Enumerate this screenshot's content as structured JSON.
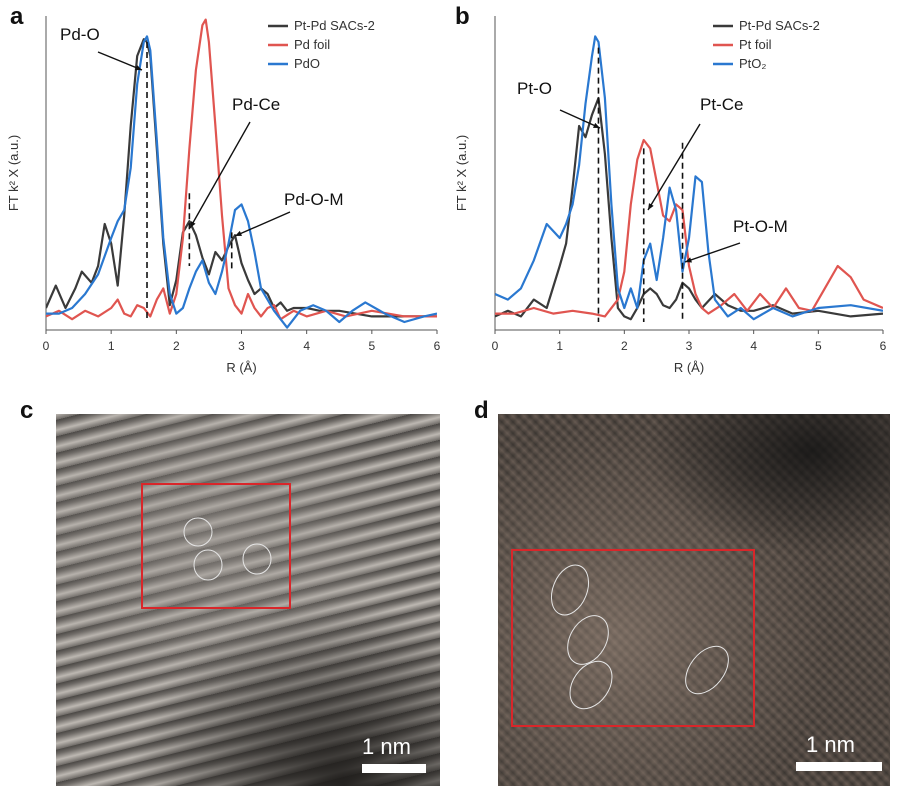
{
  "chart_data": [
    {
      "panel": "a",
      "type": "line",
      "xlabel": "R (Å)",
      "ylabel": "FT k² X (a.u.)",
      "xlim": [
        0,
        6
      ],
      "xticks": [
        "0",
        "1",
        "2",
        "3",
        "4",
        "5",
        "6"
      ],
      "ylim": [
        0,
        1
      ],
      "legend_position": "top-right",
      "series": [
        {
          "name": "Pt-Pd SACs-2",
          "color": "#3a3a3a",
          "x": [
            0,
            0.15,
            0.3,
            0.45,
            0.55,
            0.7,
            0.8,
            0.9,
            1.0,
            1.1,
            1.2,
            1.3,
            1.4,
            1.5,
            1.55,
            1.6,
            1.7,
            1.8,
            1.9,
            2.0,
            2.1,
            2.2,
            2.3,
            2.4,
            2.5,
            2.6,
            2.7,
            2.8,
            2.9,
            3.0,
            3.1,
            3.2,
            3.3,
            3.4,
            3.5,
            3.6,
            3.7,
            3.8,
            4.0,
            4.2,
            4.5,
            5.0,
            5.5,
            6.0
          ],
          "y": [
            0.05,
            0.13,
            0.05,
            0.12,
            0.18,
            0.14,
            0.2,
            0.35,
            0.28,
            0.13,
            0.38,
            0.7,
            0.95,
            1.01,
            1.0,
            0.95,
            0.62,
            0.28,
            0.06,
            0.15,
            0.32,
            0.36,
            0.31,
            0.23,
            0.17,
            0.25,
            0.22,
            0.27,
            0.31,
            0.21,
            0.15,
            0.1,
            0.12,
            0.1,
            0.05,
            0.07,
            0.04,
            0.05,
            0.05,
            0.04,
            0.04,
            0.02,
            0.02,
            0.02
          ]
        },
        {
          "name": "Pd foil",
          "color": "#e05550",
          "x": [
            0,
            0.2,
            0.4,
            0.6,
            0.8,
            1.0,
            1.1,
            1.2,
            1.3,
            1.4,
            1.5,
            1.6,
            1.7,
            1.8,
            1.9,
            2.0,
            2.1,
            2.2,
            2.3,
            2.4,
            2.45,
            2.5,
            2.6,
            2.7,
            2.8,
            2.9,
            3.0,
            3.1,
            3.2,
            3.3,
            3.4,
            3.5,
            3.6,
            3.8,
            4.0,
            4.3,
            4.6,
            5.0,
            5.5,
            6.0
          ],
          "y": [
            0.02,
            0.04,
            0.01,
            0.04,
            0.02,
            0.05,
            0.08,
            0.03,
            0.02,
            0.06,
            0.05,
            0.02,
            0.08,
            0.12,
            0.03,
            0.1,
            0.3,
            0.62,
            0.9,
            1.06,
            1.08,
            1.0,
            0.7,
            0.38,
            0.12,
            0.06,
            0.03,
            0.1,
            0.05,
            0.02,
            0.05,
            0.06,
            0.01,
            0.04,
            0.02,
            0.04,
            0.02,
            0.04,
            0.02,
            0.02
          ]
        },
        {
          "name": "PdO",
          "color": "#2a78d0",
          "x": [
            0,
            0.2,
            0.4,
            0.6,
            0.8,
            1.0,
            1.1,
            1.2,
            1.3,
            1.4,
            1.5,
            1.55,
            1.6,
            1.7,
            1.8,
            1.9,
            2.0,
            2.1,
            2.2,
            2.3,
            2.4,
            2.5,
            2.6,
            2.7,
            2.8,
            2.9,
            3.0,
            3.1,
            3.2,
            3.3,
            3.5,
            3.7,
            3.9,
            4.1,
            4.3,
            4.5,
            4.7,
            4.9,
            5.2,
            5.5,
            5.8,
            6.0
          ],
          "y": [
            0.03,
            0.03,
            0.05,
            0.1,
            0.17,
            0.3,
            0.36,
            0.4,
            0.55,
            0.85,
            1.0,
            1.02,
            0.97,
            0.65,
            0.3,
            0.1,
            0.03,
            0.05,
            0.12,
            0.18,
            0.22,
            0.14,
            0.1,
            0.18,
            0.28,
            0.4,
            0.42,
            0.36,
            0.25,
            0.12,
            0.04,
            -0.02,
            0.04,
            0.06,
            0.04,
            0.0,
            0.04,
            0.07,
            0.03,
            0.0,
            0.02,
            0.03
          ]
        }
      ],
      "annotations": [
        {
          "text": "Pd-O",
          "x": 1.55
        },
        {
          "text": "Pd-Ce",
          "x": 2.2
        },
        {
          "text": "Pd-O-M",
          "x": 2.85
        }
      ]
    },
    {
      "panel": "b",
      "type": "line",
      "xlabel": "R (Å)",
      "ylabel": "FT k² X (a.u.)",
      "xlim": [
        0,
        6
      ],
      "xticks": [
        "0",
        "1",
        "2",
        "3",
        "4",
        "5",
        "6"
      ],
      "ylim": [
        0,
        1
      ],
      "legend_position": "top-right",
      "series": [
        {
          "name": "Pt-Pd SACs-2",
          "color": "#3a3a3a",
          "x": [
            0,
            0.2,
            0.4,
            0.6,
            0.8,
            1.0,
            1.1,
            1.2,
            1.3,
            1.4,
            1.5,
            1.6,
            1.7,
            1.8,
            1.9,
            2.0,
            2.1,
            2.2,
            2.3,
            2.4,
            2.5,
            2.6,
            2.7,
            2.8,
            2.9,
            3.0,
            3.1,
            3.2,
            3.4,
            3.6,
            3.8,
            4.0,
            4.3,
            4.6,
            5.0,
            5.5,
            6.0
          ],
          "y": [
            0.02,
            0.04,
            0.02,
            0.08,
            0.05,
            0.2,
            0.28,
            0.48,
            0.7,
            0.66,
            0.74,
            0.8,
            0.6,
            0.3,
            0.05,
            0.02,
            0.01,
            0.05,
            0.1,
            0.12,
            0.1,
            0.06,
            0.05,
            0.08,
            0.14,
            0.12,
            0.08,
            0.05,
            0.1,
            0.06,
            0.04,
            0.04,
            0.06,
            0.03,
            0.04,
            0.02,
            0.03
          ]
        },
        {
          "name": "Pt foil",
          "color": "#e05550",
          "x": [
            0,
            0.3,
            0.6,
            0.9,
            1.2,
            1.5,
            1.7,
            1.9,
            2.0,
            2.1,
            2.2,
            2.3,
            2.4,
            2.5,
            2.6,
            2.7,
            2.8,
            2.9,
            3.0,
            3.1,
            3.2,
            3.3,
            3.5,
            3.7,
            3.9,
            4.1,
            4.3,
            4.5,
            4.7,
            4.9,
            5.1,
            5.3,
            5.5,
            5.7,
            6.0
          ],
          "y": [
            0.03,
            0.03,
            0.05,
            0.03,
            0.04,
            0.03,
            0.02,
            0.08,
            0.18,
            0.42,
            0.58,
            0.65,
            0.62,
            0.5,
            0.38,
            0.36,
            0.42,
            0.4,
            0.2,
            0.1,
            0.05,
            0.03,
            0.06,
            0.1,
            0.04,
            0.1,
            0.05,
            0.12,
            0.05,
            0.04,
            0.12,
            0.2,
            0.16,
            0.08,
            0.05
          ]
        },
        {
          "name": "PtO₂",
          "color": "#2a78d0",
          "x": [
            0,
            0.2,
            0.4,
            0.6,
            0.8,
            1.0,
            1.1,
            1.2,
            1.3,
            1.4,
            1.5,
            1.55,
            1.6,
            1.7,
            1.8,
            1.9,
            2.0,
            2.1,
            2.2,
            2.3,
            2.4,
            2.5,
            2.6,
            2.7,
            2.8,
            2.9,
            3.0,
            3.1,
            3.2,
            3.3,
            3.4,
            3.6,
            3.8,
            4.0,
            4.3,
            4.6,
            5.0,
            5.5,
            6.0
          ],
          "y": [
            0.1,
            0.08,
            0.12,
            0.22,
            0.35,
            0.3,
            0.35,
            0.42,
            0.56,
            0.78,
            0.95,
            1.02,
            1.0,
            0.8,
            0.42,
            0.12,
            0.05,
            0.12,
            0.05,
            0.22,
            0.28,
            0.15,
            0.3,
            0.48,
            0.4,
            0.18,
            0.3,
            0.52,
            0.5,
            0.25,
            0.08,
            0.02,
            0.05,
            0.01,
            0.05,
            0.02,
            0.05,
            0.06,
            0.04
          ]
        }
      ],
      "annotations": [
        {
          "text": "Pt-O",
          "x": 1.6
        },
        {
          "text": "Pt-Ce",
          "x": 2.3
        },
        {
          "text": "Pt-O-M",
          "x": 2.9
        }
      ]
    }
  ],
  "panels": {
    "a": {
      "letter": "a"
    },
    "b": {
      "letter": "b"
    },
    "c": {
      "letter": "c",
      "scale_label": "1 nm"
    },
    "d": {
      "letter": "d",
      "scale_label": "1 nm"
    }
  }
}
